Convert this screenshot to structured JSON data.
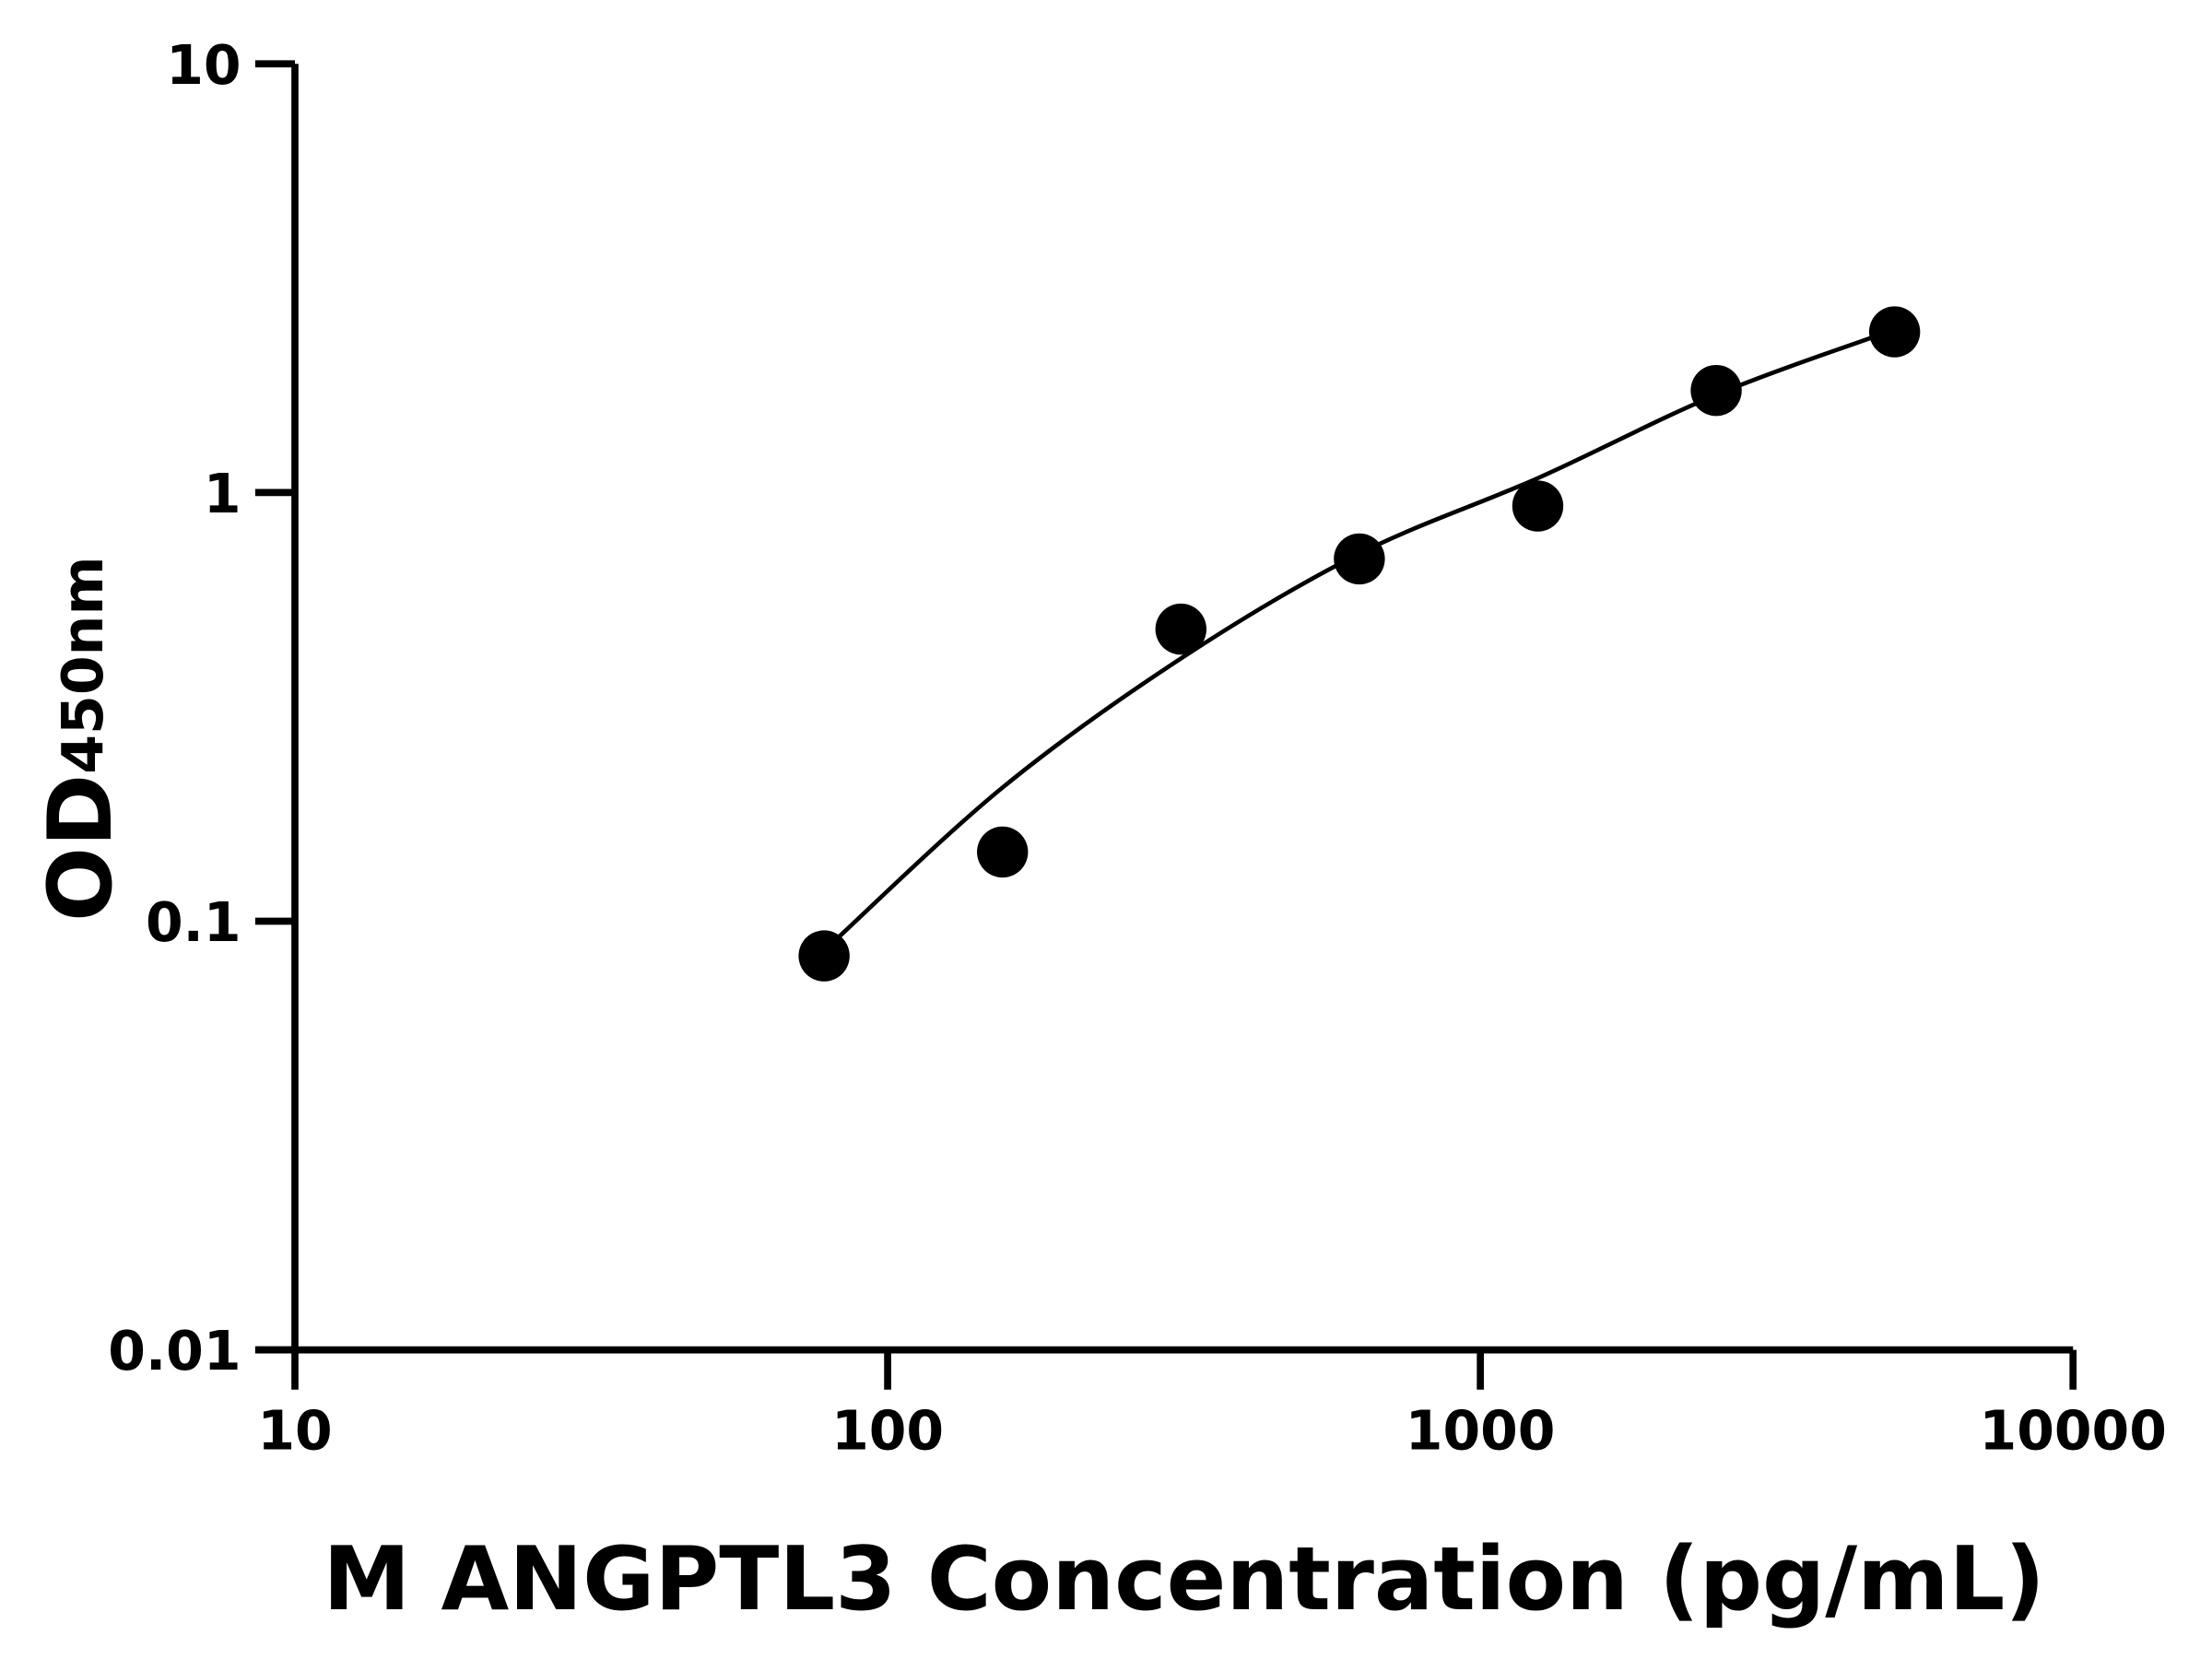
{
  "chart_data": {
    "type": "scatter",
    "xlabel": "M ANGPTL3 Concentration (pg/mL)",
    "ylabel_main": "OD",
    "ylabel_sub": "450nm",
    "x_scale": "log",
    "y_scale": "log",
    "xlim": [
      10,
      10000
    ],
    "ylim": [
      0.01,
      10
    ],
    "x_ticks": [
      "10",
      "100",
      "1000",
      "10000"
    ],
    "y_ticks": [
      "0.01",
      "0.1",
      "1",
      "10"
    ],
    "grid": false,
    "points": [
      {
        "x": 78.125,
        "y": 0.083
      },
      {
        "x": 156.25,
        "y": 0.145
      },
      {
        "x": 312.5,
        "y": 0.48
      },
      {
        "x": 625,
        "y": 0.7
      },
      {
        "x": 1250,
        "y": 0.93
      },
      {
        "x": 2500,
        "y": 1.73
      },
      {
        "x": 5000,
        "y": 2.37
      }
    ],
    "fit_curve": [
      {
        "x": 80,
        "y": 0.088
      },
      {
        "x": 156.25,
        "y": 0.205
      },
      {
        "x": 312.5,
        "y": 0.41
      },
      {
        "x": 625,
        "y": 0.72
      },
      {
        "x": 1250,
        "y": 1.08
      },
      {
        "x": 2500,
        "y": 1.69
      },
      {
        "x": 5000,
        "y": 2.4
      }
    ],
    "colors": {
      "points": "#000000",
      "curve": "#000000",
      "axes": "#000000"
    }
  }
}
